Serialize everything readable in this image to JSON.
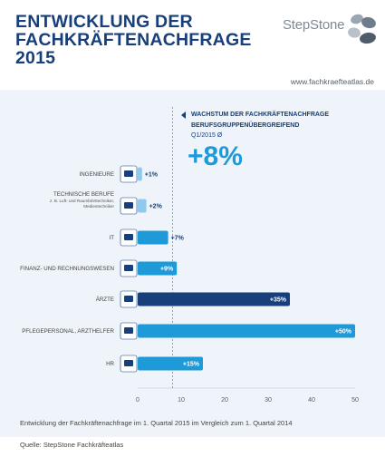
{
  "header": {
    "title_line1": "ENTWICKLUNG DER",
    "title_line2": "FACHKRÄFTENACHFRAGE",
    "title_line3": "2015",
    "logo_text": "StepStone",
    "url": "www.fachkraefteatlas.de"
  },
  "growth": {
    "line1": "WACHSTUM DER FACHKRÄFTENACHFRAGE",
    "line2": "BERUFSGRUPPENÜBERGREIFEND",
    "period": "Q1/2015 Ø",
    "value": "+8%"
  },
  "colors": {
    "title": "#173f7b",
    "bar_light": "#1d9ad7",
    "bar_pale": "#8fcaee",
    "bar_dark": "#173f7b",
    "panel": "#eef4fa"
  },
  "chart_data": {
    "type": "bar",
    "orientation": "horizontal",
    "categories": [
      {
        "label": "INGENIEURE",
        "sub": "",
        "icon": "engineer-icon"
      },
      {
        "label": "TECHNISCHE BERUFE",
        "sub": "z. B. Luft- und Raumfahrttechniker, Medientechniker",
        "sub1": "z. B. Luft- und Raumfahrttechniker,",
        "sub2": "Medientechniker",
        "icon": "gears-icon"
      },
      {
        "label": "IT",
        "sub": "",
        "icon": "laptop-icon"
      },
      {
        "label": "FINANZ- UND RECHNUNGSWESEN",
        "sub": "",
        "icon": "finance-icon"
      },
      {
        "label": "ÄRZTE",
        "sub": "",
        "icon": "doctor-icon"
      },
      {
        "label": "PFLEGEPERSONAL, ARZTHELFER",
        "sub": "",
        "icon": "nurse-icon"
      },
      {
        "label": "HR",
        "sub": "",
        "icon": "hr-icon"
      }
    ],
    "values": [
      1,
      2,
      7,
      9,
      35,
      50,
      15
    ],
    "value_labels": [
      "+1%",
      "+2%",
      "+7%",
      "+9%",
      "+35%",
      "+50%",
      "+15%"
    ],
    "bar_colors": [
      "#8fcaee",
      "#8fcaee",
      "#1d9ad7",
      "#1d9ad7",
      "#173f7b",
      "#1d9ad7",
      "#1d9ad7"
    ],
    "xlim": [
      0,
      50
    ],
    "xticks": [
      "0",
      "10",
      "20",
      "30",
      "40",
      "50"
    ],
    "reference_value": 8,
    "grid": false
  },
  "footnote": "Entwicklung der Fachkräftenachfrage im 1. Quartal 2015 im Vergleich zum 1. Quartal 2014",
  "source": "Quelle: StepStone Fachkräfteatlas"
}
